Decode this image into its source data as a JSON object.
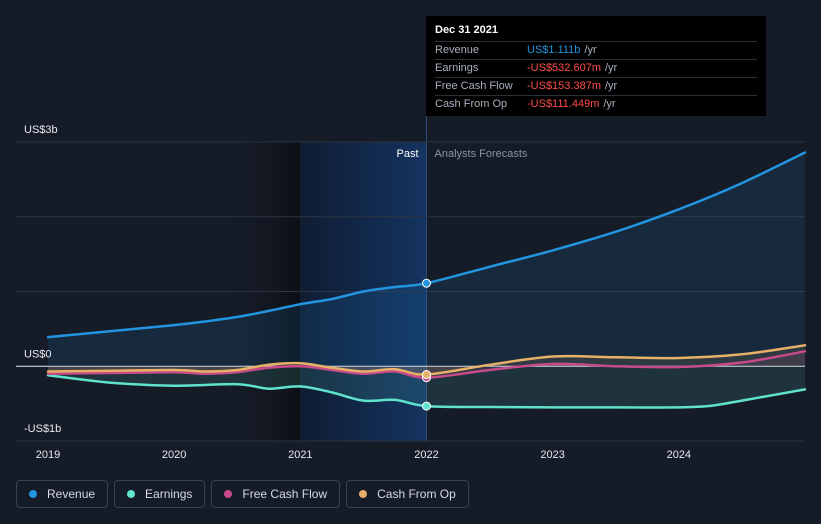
{
  "chart_data": {
    "type": "line",
    "x_unit": "year",
    "xlim": [
      2019,
      2025
    ],
    "ylim": [
      -1,
      3
    ],
    "y_unit": "US$ billions",
    "y_tick_labels": [
      {
        "value": 3,
        "label": "US$3b"
      },
      {
        "value": 0,
        "label": "US$0"
      },
      {
        "value": -1,
        "label": "-US$1b"
      }
    ],
    "x_ticks": [
      2019,
      2020,
      2021,
      2022,
      2023,
      2024
    ],
    "x_tick_labels": [
      "2019",
      "2020",
      "2021",
      "2022",
      "2023",
      "2024"
    ],
    "grid": true,
    "regions": {
      "past_label": "Past",
      "forecast_label": "Analysts Forecasts",
      "divider_x": 2022.0
    },
    "series": [
      {
        "name": "Revenue",
        "color": "#2394df",
        "filled": true,
        "x": [
          2019.0,
          2019.5,
          2020.0,
          2020.25,
          2020.5,
          2020.75,
          2021.0,
          2021.25,
          2021.5,
          2021.75,
          2022.0,
          2022.5,
          2023.0,
          2023.5,
          2024.0,
          2024.5,
          2025.0
        ],
        "y": [
          0.39,
          0.47,
          0.55,
          0.6,
          0.66,
          0.74,
          0.83,
          0.9,
          1.0,
          1.06,
          1.111,
          1.33,
          1.55,
          1.8,
          2.1,
          2.45,
          2.86
        ]
      },
      {
        "name": "Earnings",
        "color": "#5fe3cd",
        "filled": true,
        "x": [
          2019.0,
          2019.5,
          2020.0,
          2020.5,
          2020.75,
          2021.0,
          2021.25,
          2021.5,
          2021.75,
          2022.0,
          2022.5,
          2023.0,
          2023.5,
          2024.0,
          2024.25,
          2024.5,
          2025.0
        ],
        "y": [
          -0.12,
          -0.22,
          -0.26,
          -0.24,
          -0.3,
          -0.27,
          -0.35,
          -0.46,
          -0.45,
          -0.533,
          -0.545,
          -0.55,
          -0.55,
          -0.55,
          -0.53,
          -0.46,
          -0.31
        ]
      },
      {
        "name": "Free Cash Flow",
        "color": "#c74b8b",
        "filled": true,
        "x": [
          2019.0,
          2019.5,
          2020.0,
          2020.25,
          2020.5,
          2020.75,
          2021.0,
          2021.25,
          2021.5,
          2021.75,
          2022.0,
          2022.5,
          2023.0,
          2023.5,
          2024.0,
          2024.5,
          2025.0
        ],
        "y": [
          -0.1,
          -0.09,
          -0.08,
          -0.1,
          -0.08,
          -0.02,
          0.0,
          -0.05,
          -0.1,
          -0.07,
          -0.153,
          -0.05,
          0.03,
          0.0,
          -0.01,
          0.05,
          0.2
        ]
      },
      {
        "name": "Cash From Op",
        "color": "#e7b067",
        "filled": true,
        "x": [
          2019.0,
          2019.5,
          2020.0,
          2020.25,
          2020.5,
          2020.75,
          2021.0,
          2021.25,
          2021.5,
          2021.75,
          2022.0,
          2022.5,
          2023.0,
          2023.5,
          2024.0,
          2024.5,
          2025.0
        ],
        "y": [
          -0.07,
          -0.06,
          -0.05,
          -0.07,
          -0.05,
          0.02,
          0.04,
          -0.02,
          -0.07,
          -0.04,
          -0.111,
          0.02,
          0.13,
          0.12,
          0.11,
          0.16,
          0.28
        ]
      }
    ],
    "markers": [
      {
        "series": "Revenue",
        "x": 2022.0,
        "y": 1.111
      },
      {
        "series": "Earnings",
        "x": 2022.0,
        "y": -0.533
      },
      {
        "series": "Free Cash Flow",
        "x": 2022.0,
        "y": -0.153
      },
      {
        "series": "Cash From Op",
        "x": 2022.0,
        "y": -0.111
      }
    ]
  },
  "tooltip": {
    "date": "Dec 31 2021",
    "rows": [
      {
        "label": "Revenue",
        "value": "US$1.111b",
        "unit": "/yr",
        "color": "#2394df"
      },
      {
        "label": "Earnings",
        "value": "-US$532.607m",
        "unit": "/yr",
        "color": "#ff4d4d"
      },
      {
        "label": "Free Cash Flow",
        "value": "-US$153.387m",
        "unit": "/yr",
        "color": "#ff4d4d"
      },
      {
        "label": "Cash From Op",
        "value": "-US$111.449m",
        "unit": "/yr",
        "color": "#ff4d4d"
      }
    ]
  },
  "legend": [
    {
      "label": "Revenue",
      "color": "#2394df"
    },
    {
      "label": "Earnings",
      "color": "#5fe3cd"
    },
    {
      "label": "Free Cash Flow",
      "color": "#c74b8b"
    },
    {
      "label": "Cash From Op",
      "color": "#e7b067"
    }
  ]
}
